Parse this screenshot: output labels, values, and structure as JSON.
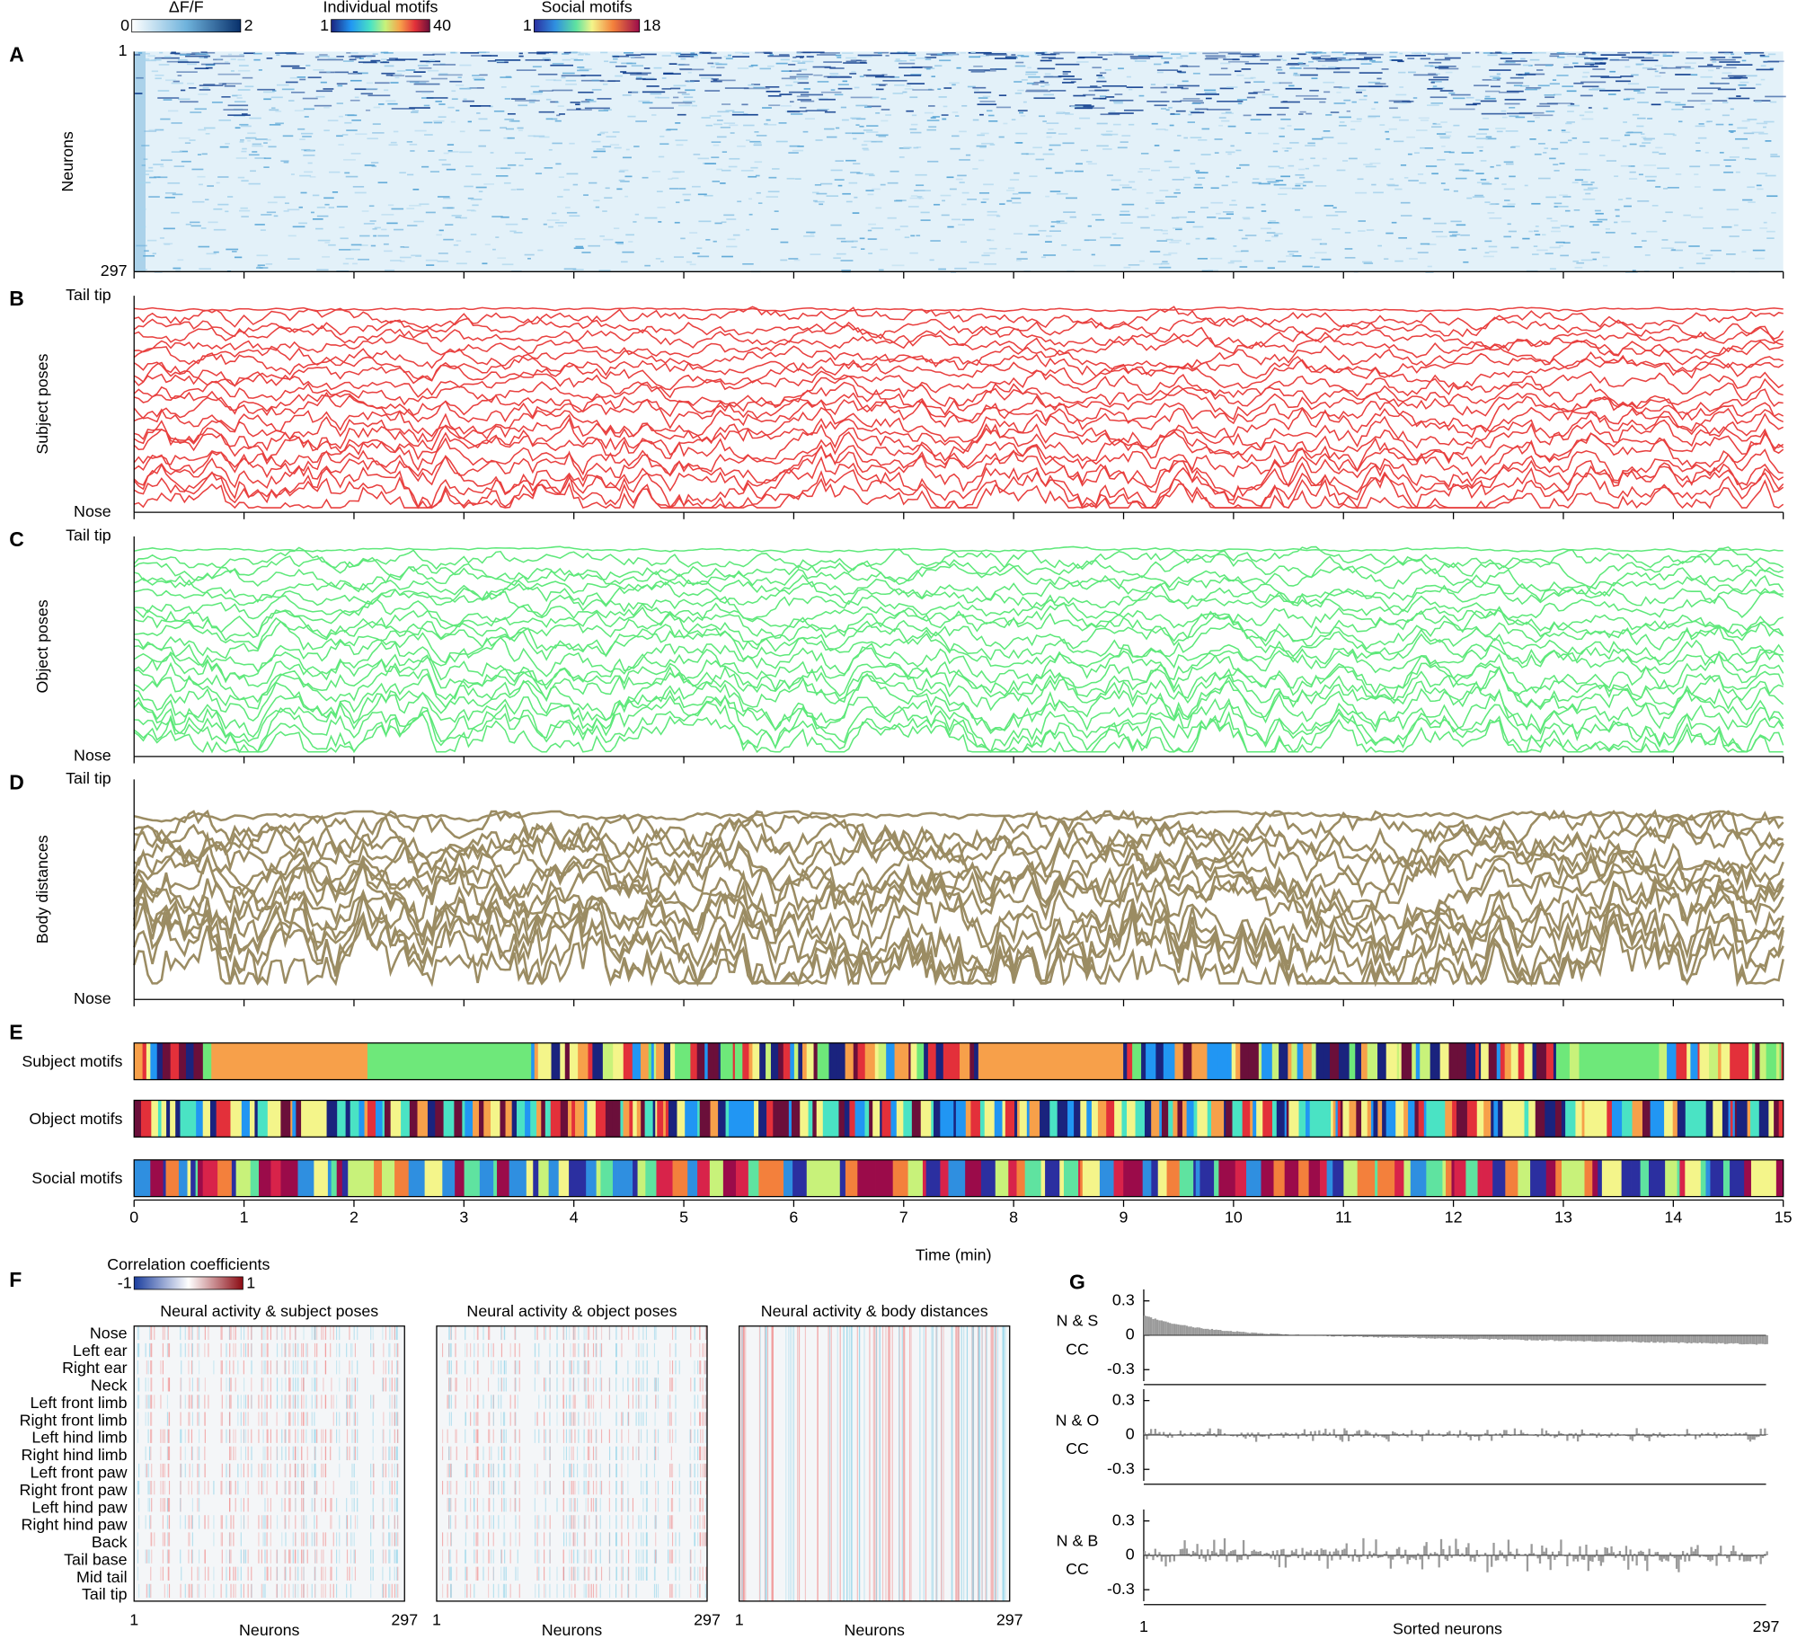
{
  "colorbars": [
    {
      "title": "ΔF/F",
      "min": 0,
      "max": 2
    },
    {
      "title": "Individual motifs",
      "min": 1,
      "max": 40
    },
    {
      "title": "Social motifs",
      "min": 1,
      "max": 18
    },
    {
      "title": "Correlation coefficients",
      "min": -1,
      "max": 1
    }
  ],
  "panels": {
    "A": {
      "label": "A",
      "ylabel": "Neurons",
      "yticks": [
        1,
        297
      ]
    },
    "B": {
      "label": "B",
      "ylabel": "Subject poses",
      "yticks": [
        "Tail tip",
        "Nose"
      ]
    },
    "C": {
      "label": "C",
      "ylabel": "Object poses",
      "yticks": [
        "Tail tip",
        "Nose"
      ]
    },
    "D": {
      "label": "D",
      "ylabel": "Body distances",
      "yticks": [
        "Tail tip",
        "Nose"
      ]
    },
    "E": {
      "label": "E",
      "rows": [
        "Subject motifs",
        "Object motifs",
        "Social motifs"
      ],
      "xlabel": "Time (min)",
      "xlim": [
        0,
        15
      ],
      "xticks": [
        0,
        1,
        2,
        3,
        4,
        5,
        6,
        7,
        8,
        9,
        10,
        11,
        12,
        13,
        14,
        15
      ]
    },
    "F": {
      "label": "F",
      "titles": [
        "Neural activity & subject poses",
        "Neural activity & object poses",
        "Neural activity & body distances"
      ],
      "bodyparts": [
        "Nose",
        "Left ear",
        "Right ear",
        "Neck",
        "Left front limb",
        "Right front limb",
        "Left hind limb",
        "Right hind limb",
        "Left front paw",
        "Right front paw",
        "Left hind paw",
        "Right hind paw",
        "Back",
        "Tail base",
        "Mid tail",
        "Tail tip"
      ],
      "xlabel": "Neurons",
      "xticks": [
        1,
        297
      ]
    },
    "G": {
      "label": "G",
      "rows": [
        "N & S",
        "N & O",
        "N & B"
      ],
      "ylabel": "CC",
      "ylim": [
        -0.4,
        0.4
      ],
      "yticks": [
        0.3,
        0,
        -0.3
      ],
      "xlabel": "Sorted neurons",
      "xticks": [
        1,
        297
      ]
    }
  }
}
